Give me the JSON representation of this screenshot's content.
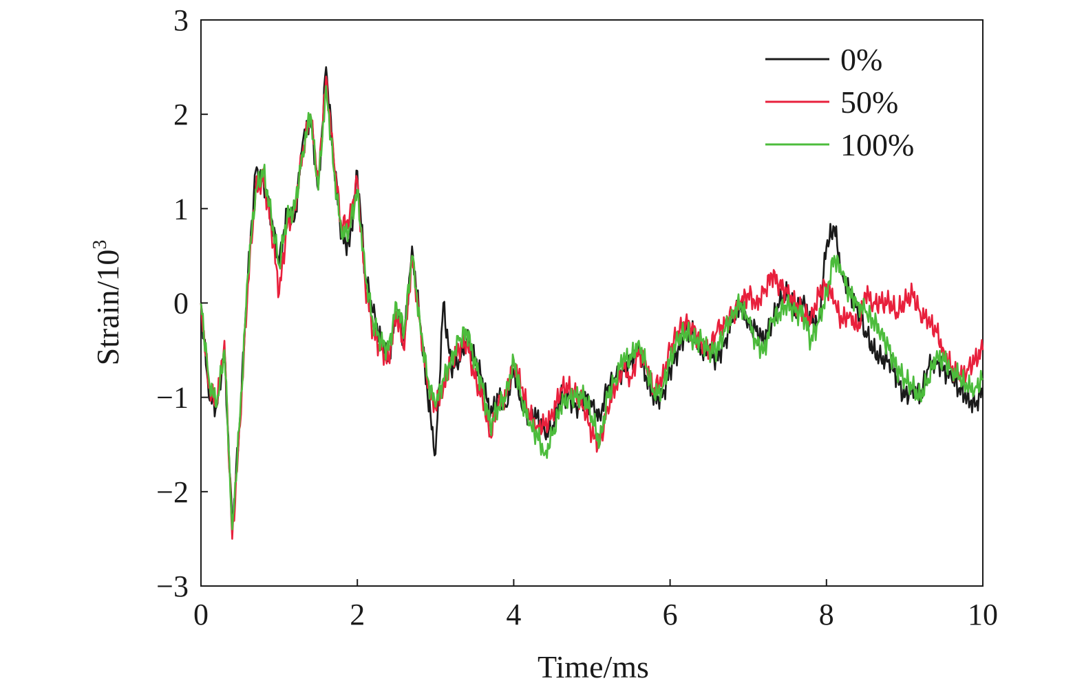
{
  "chart_data": {
    "type": "line",
    "title": "",
    "xlabel": "Time/ms",
    "ylabel": "Strain/10",
    "ylabel_superscript": "3",
    "xlim": [
      0,
      10
    ],
    "ylim": [
      -3,
      3
    ],
    "xticks": [
      0,
      2,
      4,
      6,
      8,
      10
    ],
    "yticks": [
      -3,
      -2,
      -1,
      0,
      1,
      2,
      3
    ],
    "xtick_labels": [
      "0",
      "2",
      "4",
      "6",
      "8",
      "10"
    ],
    "ytick_labels": [
      "−3",
      "−2",
      "−1",
      "0",
      "1",
      "2",
      "3"
    ],
    "grid": false,
    "legend_position": "top-right",
    "x": [
      0.0,
      0.1,
      0.2,
      0.3,
      0.4,
      0.5,
      0.6,
      0.7,
      0.8,
      0.9,
      1.0,
      1.1,
      1.2,
      1.3,
      1.4,
      1.5,
      1.6,
      1.7,
      1.8,
      1.9,
      2.0,
      2.1,
      2.2,
      2.3,
      2.4,
      2.5,
      2.6,
      2.7,
      2.8,
      2.9,
      3.0,
      3.1,
      3.2,
      3.3,
      3.4,
      3.5,
      3.6,
      3.7,
      3.8,
      3.9,
      4.0,
      4.1,
      4.2,
      4.3,
      4.4,
      4.5,
      4.6,
      4.7,
      4.8,
      4.9,
      5.0,
      5.1,
      5.2,
      5.3,
      5.4,
      5.5,
      5.6,
      5.7,
      5.8,
      5.9,
      6.0,
      6.1,
      6.2,
      6.3,
      6.4,
      6.5,
      6.6,
      6.7,
      6.8,
      6.9,
      7.0,
      7.1,
      7.2,
      7.3,
      7.4,
      7.5,
      7.6,
      7.7,
      7.8,
      7.9,
      8.0,
      8.1,
      8.2,
      8.3,
      8.4,
      8.5,
      8.6,
      8.7,
      8.8,
      8.9,
      9.0,
      9.1,
      9.2,
      9.3,
      9.4,
      9.5,
      9.6,
      9.7,
      9.8,
      9.9,
      10.0
    ],
    "series": [
      {
        "name": "0%",
        "color": "#1a1a1a",
        "values": [
          0.0,
          -1.0,
          -1.1,
          -0.5,
          -2.4,
          -1.2,
          0.3,
          1.4,
          1.3,
          0.9,
          0.4,
          1.0,
          0.9,
          1.7,
          2.0,
          1.2,
          2.5,
          1.5,
          0.7,
          0.6,
          1.4,
          0.3,
          -0.1,
          -0.4,
          -0.6,
          -0.1,
          -0.4,
          0.6,
          -0.2,
          -1.0,
          -1.6,
          0.0,
          -0.7,
          -0.6,
          -0.4,
          -0.6,
          -0.8,
          -1.2,
          -1.0,
          -1.1,
          -0.7,
          -1.1,
          -1.2,
          -1.2,
          -1.4,
          -1.3,
          -1.0,
          -1.0,
          -1.1,
          -1.0,
          -1.1,
          -1.2,
          -0.9,
          -0.8,
          -0.7,
          -0.6,
          -0.5,
          -0.8,
          -1.0,
          -1.0,
          -0.7,
          -0.5,
          -0.3,
          -0.3,
          -0.5,
          -0.5,
          -0.6,
          -0.4,
          -0.2,
          0.0,
          -0.2,
          -0.3,
          -0.4,
          -0.2,
          0.0,
          0.1,
          -0.1,
          0.0,
          -0.2,
          -0.2,
          0.6,
          0.8,
          0.3,
          0.1,
          -0.1,
          -0.3,
          -0.5,
          -0.6,
          -0.6,
          -0.8,
          -1.0,
          -0.9,
          -1.0,
          -0.7,
          -0.6,
          -0.7,
          -0.8,
          -0.9,
          -1.0,
          -1.1,
          -0.9
        ]
      },
      {
        "name": "50%",
        "color": "#e8203c",
        "values": [
          0.0,
          -0.9,
          -1.1,
          -0.4,
          -2.5,
          -1.3,
          0.2,
          1.2,
          1.3,
          0.8,
          0.1,
          0.8,
          1.0,
          1.6,
          2.0,
          1.3,
          2.4,
          1.5,
          0.8,
          0.9,
          1.3,
          0.2,
          -0.3,
          -0.5,
          -0.6,
          -0.1,
          -0.5,
          0.5,
          -0.2,
          -0.9,
          -1.1,
          -0.9,
          -0.6,
          -0.5,
          -0.4,
          -0.8,
          -1.0,
          -1.4,
          -1.1,
          -1.0,
          -0.6,
          -0.9,
          -1.2,
          -1.3,
          -1.3,
          -1.2,
          -0.9,
          -0.9,
          -1.0,
          -1.1,
          -1.4,
          -1.5,
          -1.1,
          -0.9,
          -0.7,
          -0.8,
          -0.5,
          -0.7,
          -0.9,
          -0.8,
          -0.5,
          -0.3,
          -0.2,
          -0.3,
          -0.4,
          -0.5,
          -0.3,
          -0.2,
          -0.1,
          0.0,
          0.1,
          0.0,
          0.1,
          0.3,
          0.2,
          0.1,
          0.0,
          -0.1,
          -0.2,
          0.1,
          0.2,
          0.0,
          -0.2,
          -0.1,
          -0.3,
          0.1,
          0.0,
          0.0,
          0.0,
          -0.1,
          0.0,
          0.1,
          -0.1,
          -0.2,
          -0.3,
          -0.5,
          -0.7,
          -0.8,
          -0.7,
          -0.6,
          -0.5
        ]
      },
      {
        "name": "100%",
        "color": "#4cbc3c",
        "values": [
          0.0,
          -0.8,
          -1.1,
          -0.5,
          -2.4,
          -1.2,
          0.3,
          1.2,
          1.4,
          0.9,
          0.4,
          0.9,
          1.0,
          1.6,
          2.0,
          1.2,
          2.3,
          1.4,
          0.7,
          0.8,
          1.2,
          0.3,
          -0.2,
          -0.4,
          -0.5,
          0.0,
          -0.3,
          0.5,
          -0.2,
          -0.8,
          -1.1,
          -0.8,
          -0.6,
          -0.4,
          -0.3,
          -0.6,
          -0.9,
          -1.3,
          -1.1,
          -1.0,
          -0.6,
          -1.0,
          -1.3,
          -1.4,
          -1.6,
          -1.4,
          -1.1,
          -1.0,
          -1.0,
          -1.0,
          -1.2,
          -1.5,
          -1.0,
          -0.8,
          -0.6,
          -0.6,
          -0.4,
          -0.7,
          -1.0,
          -0.9,
          -0.6,
          -0.4,
          -0.3,
          -0.4,
          -0.4,
          -0.5,
          -0.5,
          -0.3,
          -0.1,
          0.0,
          -0.2,
          -0.4,
          -0.5,
          -0.2,
          -0.1,
          0.0,
          -0.1,
          -0.1,
          -0.4,
          -0.2,
          0.1,
          0.5,
          0.3,
          0.1,
          0.0,
          -0.1,
          -0.2,
          -0.3,
          -0.5,
          -0.7,
          -0.8,
          -0.9,
          -1.0,
          -0.8,
          -0.6,
          -0.6,
          -0.7,
          -0.8,
          -0.9,
          -0.9,
          -0.8
        ]
      }
    ]
  }
}
